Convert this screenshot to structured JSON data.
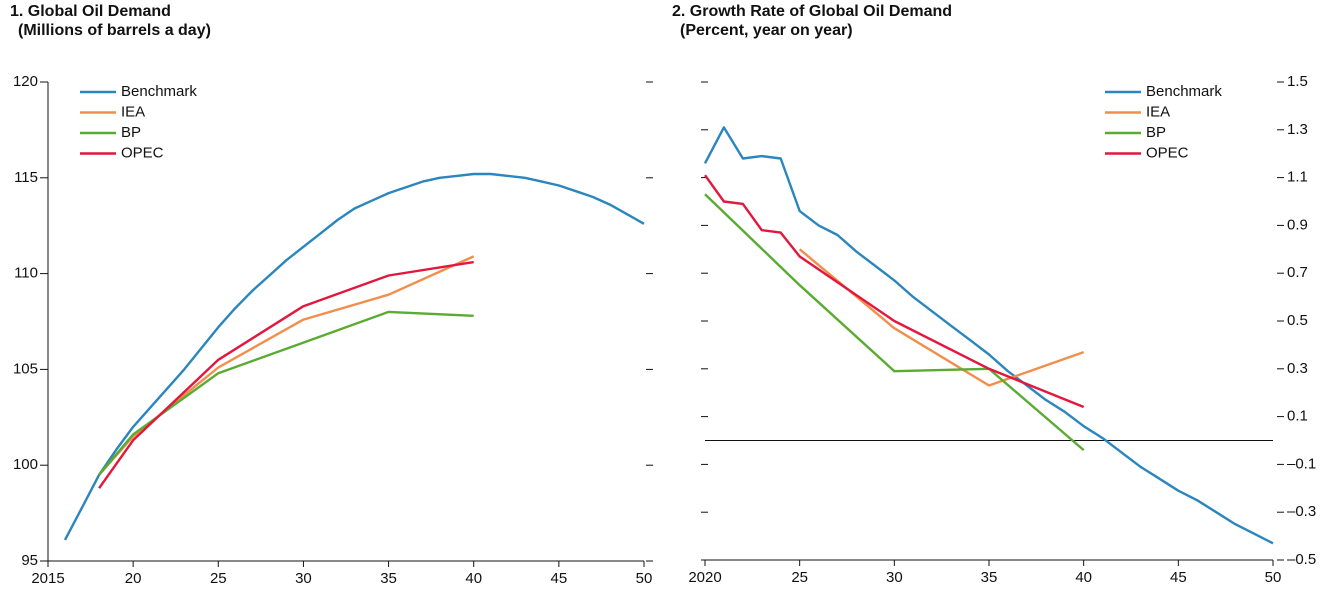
{
  "chart_data": [
    {
      "type": "line",
      "title": "1. Global Oil Demand",
      "subtitle": "(Millions of barrels a day)",
      "xlim": [
        2015,
        2050
      ],
      "xticks": [
        2015,
        {
          "value": 2020,
          "label": "20"
        },
        {
          "value": 2025,
          "label": "25"
        },
        {
          "value": 2030,
          "label": "30"
        },
        {
          "value": 2035,
          "label": "35"
        },
        {
          "value": 2040,
          "label": "40"
        },
        {
          "value": 2045,
          "label": "45"
        },
        {
          "value": 2050,
          "label": "50"
        }
      ],
      "ylim": [
        95,
        120
      ],
      "yticks": [
        95,
        100,
        105,
        110,
        115,
        120
      ],
      "y_axis_side": "left",
      "legend": "upper left",
      "series": [
        {
          "name": "Benchmark",
          "color": "#2a86bd",
          "x": [
            2016,
            2017,
            2018,
            2019,
            2020,
            2021,
            2022,
            2023,
            2024,
            2025,
            2026,
            2027,
            2028,
            2029,
            2030,
            2031,
            2032,
            2033,
            2034,
            2035,
            2036,
            2037,
            2038,
            2039,
            2040,
            2041,
            2042,
            2043,
            2044,
            2045,
            2046,
            2047,
            2048,
            2049,
            2050
          ],
          "values": [
            96.1,
            97.8,
            99.5,
            100.8,
            102.0,
            103.0,
            104.0,
            105.0,
            106.1,
            107.2,
            108.2,
            109.1,
            109.9,
            110.7,
            111.4,
            112.1,
            112.8,
            113.4,
            113.8,
            114.2,
            114.5,
            114.8,
            115.0,
            115.1,
            115.2,
            115.2,
            115.1,
            115.0,
            114.8,
            114.6,
            114.3,
            114.0,
            113.6,
            113.1,
            112.6
          ]
        },
        {
          "name": "IEA",
          "color": "#f28e4c",
          "x": [
            2018,
            2020,
            2025,
            2030,
            2035,
            2040
          ],
          "values": [
            99.5,
            101.5,
            105.1,
            107.6,
            108.9,
            110.9
          ]
        },
        {
          "name": "BP",
          "color": "#5aab32",
          "x": [
            2018,
            2020,
            2025,
            2030,
            2035,
            2040
          ],
          "values": [
            99.5,
            101.6,
            104.8,
            106.4,
            108.0,
            107.8
          ]
        },
        {
          "name": "OPEC",
          "color": "#e3173e",
          "x": [
            2018,
            2020,
            2025,
            2030,
            2035,
            2040
          ],
          "values": [
            98.8,
            101.3,
            105.5,
            108.3,
            109.9,
            110.6
          ]
        }
      ]
    },
    {
      "type": "line",
      "title": "2. Growth Rate of Global Oil Demand",
      "subtitle": "(Percent, year on year)",
      "xlim": [
        2020,
        2050
      ],
      "xticks": [
        2020,
        {
          "value": 2025,
          "label": "25"
        },
        {
          "value": 2030,
          "label": "30"
        },
        {
          "value": 2035,
          "label": "35"
        },
        {
          "value": 2040,
          "label": "40"
        },
        {
          "value": 2045,
          "label": "45"
        },
        {
          "value": 2050,
          "label": "50"
        }
      ],
      "ylim": [
        -0.5,
        1.5
      ],
      "yticks": [
        {
          "value": -0.5,
          "label": "–0.5"
        },
        {
          "value": -0.3,
          "label": "–0.3"
        },
        {
          "value": -0.1,
          "label": "–0.1"
        },
        0.1,
        0.3,
        0.5,
        0.7,
        0.9,
        1.1,
        1.3,
        1.5
      ],
      "y_axis_side": "right",
      "legend": "upper right",
      "series": [
        {
          "name": "Benchmark",
          "color": "#2a86bd",
          "x": [
            2020,
            2021,
            2022,
            2023,
            2024,
            2025,
            2026,
            2027,
            2028,
            2029,
            2030,
            2031,
            2032,
            2033,
            2034,
            2035,
            2036,
            2037,
            2038,
            2039,
            2040,
            2041,
            2042,
            2043,
            2044,
            2045,
            2046,
            2047,
            2048,
            2049,
            2050
          ],
          "values": [
            1.16,
            1.31,
            1.18,
            1.19,
            1.18,
            0.96,
            0.9,
            0.86,
            0.79,
            0.73,
            0.67,
            0.6,
            0.54,
            0.48,
            0.42,
            0.36,
            0.29,
            0.23,
            0.17,
            0.12,
            0.06,
            0.01,
            -0.05,
            -0.11,
            -0.16,
            -0.21,
            -0.25,
            -0.3,
            -0.35,
            -0.39,
            -0.43
          ]
        },
        {
          "name": "IEA",
          "color": "#f28e4c",
          "x": [
            2025,
            2030,
            2035,
            2040
          ],
          "values": [
            0.8,
            0.47,
            0.23,
            0.37
          ]
        },
        {
          "name": "BP",
          "color": "#5aab32",
          "x": [
            2020,
            2025,
            2030,
            2035,
            2040
          ],
          "values": [
            1.03,
            0.65,
            0.29,
            0.3,
            -0.04
          ]
        },
        {
          "name": "OPEC",
          "color": "#e3173e",
          "x": [
            2020,
            2021,
            2022,
            2023,
            2024,
            2025,
            2030,
            2035,
            2040
          ],
          "values": [
            1.11,
            1.0,
            0.99,
            0.88,
            0.87,
            0.77,
            0.5,
            0.3,
            0.14
          ]
        }
      ]
    }
  ]
}
